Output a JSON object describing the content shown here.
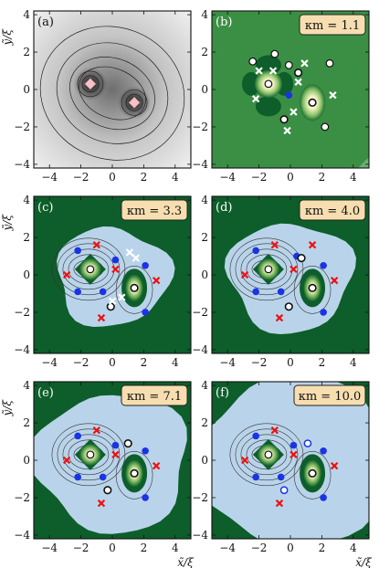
{
  "chart_data": {
    "type": "contour",
    "shared_axes": {
      "xlabel": "x̃/ξ",
      "ylabel": "ỹ/ξ",
      "xlim": [
        -5,
        5
      ],
      "ylim": [
        -4.2,
        4.2
      ],
      "x_ticks": [
        "−4",
        "−2",
        "0",
        "2",
        "4"
      ],
      "y_ticks": [
        "−4",
        "−2",
        "0",
        "2",
        "4"
      ],
      "x_tick_values": [
        -4,
        -2,
        0,
        2,
        4
      ],
      "y_tick_values": [
        -4,
        -2,
        0,
        2,
        4
      ]
    },
    "colors": {
      "dark_green": "#0d5e2a",
      "mid_green": "#3b8f44",
      "light_blue": "#b9d4ea",
      "blue_marker": "#1a33e6",
      "red_marker": "#ee1111",
      "pink_marker": "#f5c4c8"
    },
    "panels": [
      {
        "label": "(a)",
        "kappa_label": "",
        "background": "grayscale",
        "markers": [
          {
            "type": "pink-diamond",
            "x": -1.4,
            "y": 0.3
          },
          {
            "type": "pink-diamond",
            "x": 1.4,
            "y": -0.7
          }
        ]
      },
      {
        "label": "(b)",
        "kappa_label": "κm = 1.1",
        "background": "mid_green",
        "markers": [
          {
            "type": "white-dot",
            "x": -1.0,
            "y": 1.9
          },
          {
            "type": "white-dot",
            "x": -2.4,
            "y": 1.5
          },
          {
            "type": "white-dot",
            "x": -0.1,
            "y": 1.3
          },
          {
            "type": "white-dot",
            "x": 2.5,
            "y": 1.4
          },
          {
            "type": "white-dot",
            "x": 2.2,
            "y": -2.0
          },
          {
            "type": "white-dot",
            "x": -1.4,
            "y": 0.3
          },
          {
            "type": "blue-dot",
            "x": -0.1,
            "y": -0.3
          },
          {
            "type": "ring-dot",
            "x": 1.4,
            "y": -0.7
          },
          {
            "type": "ring-dot",
            "x": 0.5,
            "y": 0.9
          },
          {
            "type": "ring-dot",
            "x": -0.4,
            "y": -1.6
          },
          {
            "type": "white-cross",
            "x": -2.0,
            "y": 1.0
          },
          {
            "type": "white-cross",
            "x": -1.1,
            "y": 1.0
          },
          {
            "type": "white-cross",
            "x": -2.2,
            "y": -0.5
          },
          {
            "type": "white-cross",
            "x": 0.9,
            "y": 1.4
          },
          {
            "type": "white-cross",
            "x": 0.5,
            "y": 0.4
          },
          {
            "type": "white-cross",
            "x": 2.7,
            "y": -0.3
          },
          {
            "type": "white-cross",
            "x": 0.2,
            "y": -1.2
          },
          {
            "type": "white-cross",
            "x": -0.2,
            "y": -2.2
          }
        ]
      },
      {
        "label": "(c)",
        "kappa_label": "κm = 3.3",
        "background": "dark_green",
        "markers": [
          {
            "type": "white-dot",
            "x": -1.4,
            "y": 0.3
          },
          {
            "type": "blue-dot",
            "x": -2.2,
            "y": 1.3
          },
          {
            "type": "blue-dot",
            "x": -2.2,
            "y": -0.9
          },
          {
            "type": "blue-dot",
            "x": -0.6,
            "y": -0.9
          },
          {
            "type": "blue-dot",
            "x": 0.2,
            "y": 0.8
          },
          {
            "type": "blue-dot",
            "x": 2.1,
            "y": 0.5
          },
          {
            "type": "blue-dot",
            "x": 2.1,
            "y": -2.0
          },
          {
            "type": "ring-dot",
            "x": 1.4,
            "y": -0.7
          },
          {
            "type": "ring-dot",
            "x": -0.1,
            "y": -1.7
          },
          {
            "type": "red-cross",
            "x": -1.0,
            "y": 1.6
          },
          {
            "type": "red-cross",
            "x": -2.9,
            "y": 0.0
          },
          {
            "type": "red-cross",
            "x": 0.2,
            "y": 0.3
          },
          {
            "type": "red-cross",
            "x": 2.8,
            "y": -0.3
          },
          {
            "type": "red-cross",
            "x": -0.7,
            "y": -2.3
          },
          {
            "type": "white-cross",
            "x": 1.1,
            "y": 1.2
          },
          {
            "type": "white-cross",
            "x": 1.5,
            "y": 0.9
          },
          {
            "type": "white-cross",
            "x": 0.6,
            "y": -1.2
          },
          {
            "type": "white-cross",
            "x": 0.0,
            "y": -1.4
          }
        ]
      },
      {
        "label": "(d)",
        "kappa_label": "κm = 4.0",
        "background": "dark_green",
        "markers": [
          {
            "type": "white-dot",
            "x": -1.4,
            "y": 0.3
          },
          {
            "type": "blue-dot",
            "x": -2.2,
            "y": 1.3
          },
          {
            "type": "blue-dot",
            "x": -2.2,
            "y": -0.9
          },
          {
            "type": "blue-dot",
            "x": -0.6,
            "y": -0.9
          },
          {
            "type": "blue-dot",
            "x": 0.4,
            "y": 1.0
          },
          {
            "type": "blue-dot",
            "x": 2.1,
            "y": 0.5
          },
          {
            "type": "blue-dot",
            "x": 2.1,
            "y": -2.0
          },
          {
            "type": "ring-dot",
            "x": 1.4,
            "y": -0.7
          },
          {
            "type": "ring-dot",
            "x": 0.7,
            "y": 0.9
          },
          {
            "type": "ring-dot",
            "x": -0.1,
            "y": -1.7
          },
          {
            "type": "red-cross",
            "x": -1.0,
            "y": 1.6
          },
          {
            "type": "red-cross",
            "x": -2.9,
            "y": 0.0
          },
          {
            "type": "red-cross",
            "x": 0.2,
            "y": 0.3
          },
          {
            "type": "red-cross",
            "x": 1.4,
            "y": 1.6
          },
          {
            "type": "red-cross",
            "x": 2.8,
            "y": -0.3
          },
          {
            "type": "red-cross",
            "x": -0.7,
            "y": -2.3
          }
        ]
      },
      {
        "label": "(e)",
        "kappa_label": "κm = 7.1",
        "background": "dark_green",
        "markers": [
          {
            "type": "white-dot",
            "x": -1.4,
            "y": 0.3
          },
          {
            "type": "blue-dot",
            "x": -2.2,
            "y": 1.3
          },
          {
            "type": "blue-dot",
            "x": -2.2,
            "y": -0.9
          },
          {
            "type": "blue-dot",
            "x": -0.6,
            "y": -0.9
          },
          {
            "type": "blue-dot",
            "x": 0.2,
            "y": 0.8
          },
          {
            "type": "blue-dot",
            "x": 2.1,
            "y": 0.5
          },
          {
            "type": "blue-dot",
            "x": 2.1,
            "y": -2.0
          },
          {
            "type": "ring-dot",
            "x": 1.4,
            "y": -0.7
          },
          {
            "type": "ring-dot",
            "x": 1.0,
            "y": 0.9
          },
          {
            "type": "ring-dot",
            "x": -0.3,
            "y": -1.6
          },
          {
            "type": "red-cross",
            "x": -1.0,
            "y": 1.6
          },
          {
            "type": "red-cross",
            "x": -2.9,
            "y": 0.0
          },
          {
            "type": "red-cross",
            "x": 0.2,
            "y": 0.3
          },
          {
            "type": "red-cross",
            "x": 2.8,
            "y": -0.3
          },
          {
            "type": "red-cross",
            "x": -0.7,
            "y": -2.3
          }
        ]
      },
      {
        "label": "(f)",
        "kappa_label": "κm = 10.0",
        "background": "dark_green",
        "markers": [
          {
            "type": "white-dot",
            "x": -1.4,
            "y": 0.3
          },
          {
            "type": "blue-dot",
            "x": -2.2,
            "y": 1.3
          },
          {
            "type": "blue-dot",
            "x": -2.2,
            "y": -0.9
          },
          {
            "type": "blue-dot",
            "x": -0.6,
            "y": -0.9
          },
          {
            "type": "blue-dot",
            "x": 0.2,
            "y": 0.8
          },
          {
            "type": "blue-dot",
            "x": 2.1,
            "y": 0.5
          },
          {
            "type": "blue-dot",
            "x": 2.1,
            "y": -2.0
          },
          {
            "type": "ring-dot",
            "x": 1.4,
            "y": -0.7
          },
          {
            "type": "blue-ring",
            "x": 1.1,
            "y": 0.9
          },
          {
            "type": "blue-ring",
            "x": -0.4,
            "y": -1.6
          },
          {
            "type": "red-cross",
            "x": -1.0,
            "y": 1.6
          },
          {
            "type": "red-cross",
            "x": -2.9,
            "y": 0.0
          },
          {
            "type": "red-cross",
            "x": 0.2,
            "y": 0.3
          },
          {
            "type": "red-cross",
            "x": 2.8,
            "y": -0.3
          },
          {
            "type": "red-cross",
            "x": -0.7,
            "y": -2.3
          }
        ]
      }
    ]
  }
}
